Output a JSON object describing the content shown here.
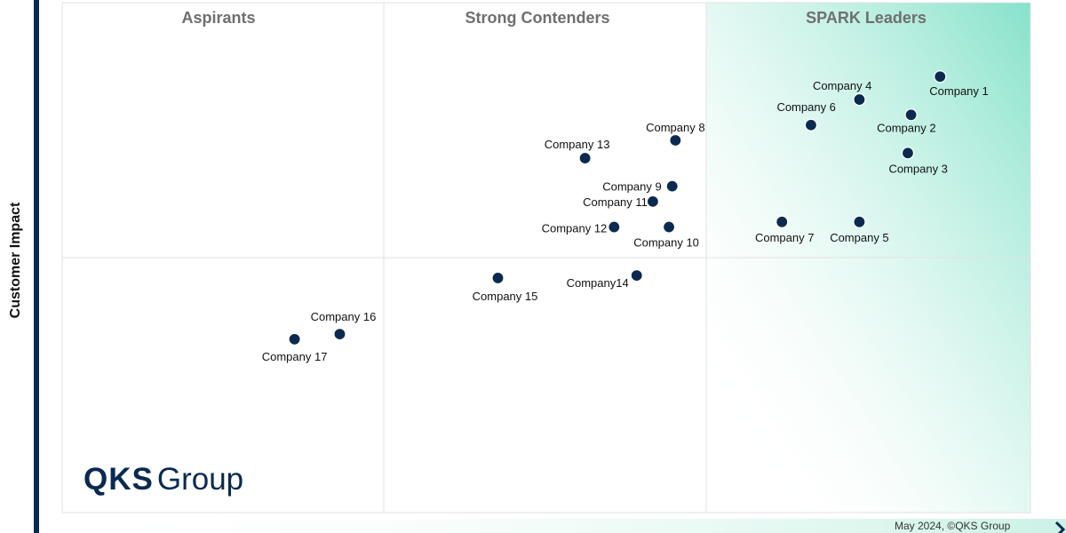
{
  "chart_data": {
    "type": "scatter",
    "title": "",
    "xlabel": "",
    "ylabel": "Customer Impact",
    "xlim": [
      0,
      3
    ],
    "ylim": [
      0,
      2
    ],
    "grid": true,
    "quadrants": [
      "Aspirants",
      "Strong Contenders",
      "SPARK Leaders"
    ],
    "points": [
      {
        "label": "Company 1",
        "x": 2.72,
        "y": 1.71
      },
      {
        "label": "Company 2",
        "x": 2.63,
        "y": 1.56
      },
      {
        "label": "Company 3",
        "x": 2.62,
        "y": 1.41
      },
      {
        "label": "Company 4",
        "x": 2.47,
        "y": 1.62
      },
      {
        "label": "Company 5",
        "x": 2.47,
        "y": 1.14
      },
      {
        "label": "Company 6",
        "x": 2.32,
        "y": 1.52
      },
      {
        "label": "Company 7",
        "x": 2.23,
        "y": 1.14
      },
      {
        "label": "Company 8",
        "x": 1.9,
        "y": 1.46
      },
      {
        "label": "Company 9",
        "x": 1.89,
        "y": 1.28
      },
      {
        "label": "Company 10",
        "x": 1.88,
        "y": 1.12
      },
      {
        "label": "Company 11",
        "x": 1.83,
        "y": 1.22
      },
      {
        "label": "Company 12",
        "x": 1.71,
        "y": 1.12
      },
      {
        "label": "Company 13",
        "x": 1.62,
        "y": 1.39
      },
      {
        "label": "Company14",
        "x": 1.78,
        "y": 0.93
      },
      {
        "label": "Company 15",
        "x": 1.35,
        "y": 0.92
      },
      {
        "label": "Company 16",
        "x": 0.86,
        "y": 0.7
      },
      {
        "label": "Company 17",
        "x": 0.72,
        "y": 0.68
      }
    ]
  },
  "branding": {
    "logo_text_bold": "QKS",
    "logo_text_regular": "Group",
    "footer_credit": "May 2024, ©QKS Group"
  },
  "colors": {
    "marker": "#0b2a4f",
    "leader_gradient": "#7fe0c8",
    "axis_bar": "#0b2a4f",
    "quadrant_title": "#6f6f6f"
  }
}
